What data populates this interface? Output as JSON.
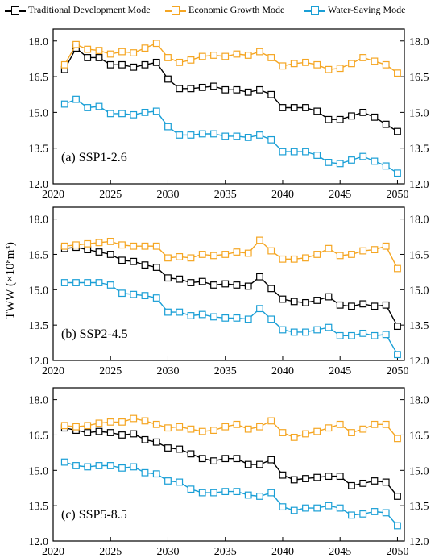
{
  "legend": {
    "items": [
      {
        "label": "Traditional Development Mode",
        "color": "#000000",
        "marker": "open-square"
      },
      {
        "label": "Economic Growth Mode",
        "color": "#f5a623",
        "marker": "open-square"
      },
      {
        "label": "Water-Saving Mode",
        "color": "#1a9fd6",
        "marker": "open-square"
      }
    ]
  },
  "shared_ylabel": "TWW (×10⁸m³)",
  "chart_data": [
    {
      "type": "line",
      "panel_label": "(a) SSP1-2.6",
      "x": [
        2021,
        2022,
        2023,
        2024,
        2025,
        2026,
        2027,
        2028,
        2029,
        2030,
        2031,
        2032,
        2033,
        2034,
        2035,
        2036,
        2037,
        2038,
        2039,
        2040,
        2041,
        2042,
        2043,
        2044,
        2045,
        2046,
        2047,
        2048,
        2049,
        2050
      ],
      "xticks": [
        2020,
        2025,
        2030,
        2035,
        2040,
        2045,
        2050
      ],
      "ylim": [
        12.0,
        18.5
      ],
      "yticks": [
        "12.0",
        "13.5",
        "15.0",
        "16.5",
        "18.0"
      ],
      "series": [
        {
          "name": "Traditional Development Mode",
          "color": "#000000",
          "values": [
            16.8,
            17.7,
            17.3,
            17.3,
            17.0,
            17.0,
            16.9,
            17.0,
            17.1,
            16.4,
            16.0,
            16.0,
            16.05,
            16.1,
            15.95,
            15.95,
            15.85,
            15.95,
            15.75,
            15.2,
            15.2,
            15.2,
            15.05,
            14.7,
            14.7,
            14.85,
            15.0,
            14.8,
            14.5,
            14.2
          ]
        },
        {
          "name": "Economic Growth Mode",
          "color": "#f5a623",
          "values": [
            17.0,
            17.85,
            17.65,
            17.6,
            17.45,
            17.55,
            17.5,
            17.7,
            17.9,
            17.3,
            17.1,
            17.2,
            17.35,
            17.4,
            17.35,
            17.45,
            17.4,
            17.55,
            17.3,
            16.95,
            17.05,
            17.1,
            17.0,
            16.8,
            16.85,
            17.05,
            17.3,
            17.15,
            17.0,
            16.65
          ]
        },
        {
          "name": "Water-Saving Mode",
          "color": "#1a9fd6",
          "values": [
            15.35,
            15.55,
            15.2,
            15.25,
            14.95,
            14.95,
            14.9,
            15.0,
            15.05,
            14.4,
            14.05,
            14.05,
            14.1,
            14.1,
            14.0,
            14.0,
            13.95,
            14.05,
            13.85,
            13.35,
            13.35,
            13.35,
            13.2,
            12.9,
            12.85,
            13.0,
            13.15,
            12.95,
            12.75,
            12.45
          ]
        }
      ]
    },
    {
      "type": "line",
      "panel_label": "(b) SSP2-4.5",
      "x": [
        2021,
        2022,
        2023,
        2024,
        2025,
        2026,
        2027,
        2028,
        2029,
        2030,
        2031,
        2032,
        2033,
        2034,
        2035,
        2036,
        2037,
        2038,
        2039,
        2040,
        2041,
        2042,
        2043,
        2044,
        2045,
        2046,
        2047,
        2048,
        2049,
        2050
      ],
      "xticks": [
        2020,
        2025,
        2030,
        2035,
        2040,
        2045,
        2050
      ],
      "ylim": [
        12.0,
        18.5
      ],
      "yticks": [
        "12.0",
        "13.5",
        "15.0",
        "16.5",
        "18.0"
      ],
      "series": [
        {
          "name": "Traditional Development Mode",
          "color": "#000000",
          "values": [
            16.75,
            16.8,
            16.7,
            16.6,
            16.5,
            16.25,
            16.2,
            16.05,
            15.95,
            15.5,
            15.45,
            15.3,
            15.35,
            15.2,
            15.25,
            15.2,
            15.15,
            15.55,
            15.05,
            14.6,
            14.5,
            14.45,
            14.55,
            14.7,
            14.35,
            14.3,
            14.4,
            14.3,
            14.35,
            13.45
          ]
        },
        {
          "name": "Economic Growth Mode",
          "color": "#f5a623",
          "values": [
            16.85,
            16.9,
            16.95,
            17.0,
            17.05,
            16.9,
            16.85,
            16.85,
            16.85,
            16.35,
            16.4,
            16.35,
            16.5,
            16.45,
            16.5,
            16.6,
            16.55,
            17.1,
            16.65,
            16.3,
            16.3,
            16.35,
            16.5,
            16.75,
            16.45,
            16.5,
            16.65,
            16.7,
            16.85,
            15.9
          ]
        },
        {
          "name": "Water-Saving Mode",
          "color": "#1a9fd6",
          "values": [
            15.3,
            15.3,
            15.3,
            15.3,
            15.2,
            14.85,
            14.8,
            14.75,
            14.65,
            14.05,
            14.05,
            13.9,
            13.95,
            13.85,
            13.8,
            13.8,
            13.75,
            14.2,
            13.75,
            13.3,
            13.2,
            13.2,
            13.3,
            13.4,
            13.05,
            13.05,
            13.15,
            13.05,
            13.1,
            12.25
          ]
        }
      ]
    },
    {
      "type": "line",
      "panel_label": "(c) SSP5-8.5",
      "x": [
        2021,
        2022,
        2023,
        2024,
        2025,
        2026,
        2027,
        2028,
        2029,
        2030,
        2031,
        2032,
        2033,
        2034,
        2035,
        2036,
        2037,
        2038,
        2039,
        2040,
        2041,
        2042,
        2043,
        2044,
        2045,
        2046,
        2047,
        2048,
        2049,
        2050
      ],
      "xticks": [
        2020,
        2025,
        2030,
        2035,
        2040,
        2045,
        2050
      ],
      "ylim": [
        12.0,
        18.5
      ],
      "yticks": [
        "12.0",
        "13.5",
        "15.0",
        "16.5",
        "18.0"
      ],
      "series": [
        {
          "name": "Traditional Development Mode",
          "color": "#000000",
          "values": [
            16.8,
            16.7,
            16.6,
            16.65,
            16.6,
            16.5,
            16.55,
            16.3,
            16.2,
            15.95,
            15.9,
            15.7,
            15.5,
            15.4,
            15.5,
            15.5,
            15.25,
            15.25,
            15.45,
            14.8,
            14.6,
            14.65,
            14.7,
            14.75,
            14.75,
            14.35,
            14.45,
            14.55,
            14.5,
            13.9
          ]
        },
        {
          "name": "Economic Growth Mode",
          "color": "#f5a623",
          "values": [
            16.9,
            16.85,
            16.9,
            17.0,
            17.05,
            17.05,
            17.2,
            17.1,
            16.95,
            16.8,
            16.85,
            16.75,
            16.65,
            16.7,
            16.85,
            16.95,
            16.75,
            16.85,
            17.1,
            16.6,
            16.4,
            16.55,
            16.65,
            16.8,
            16.95,
            16.6,
            16.75,
            16.95,
            16.95,
            16.35
          ]
        },
        {
          "name": "Water-Saving Mode",
          "color": "#1a9fd6",
          "values": [
            15.35,
            15.2,
            15.15,
            15.2,
            15.2,
            15.1,
            15.15,
            14.9,
            14.85,
            14.55,
            14.5,
            14.2,
            14.05,
            14.05,
            14.1,
            14.1,
            13.95,
            13.9,
            14.05,
            13.45,
            13.3,
            13.4,
            13.4,
            13.5,
            13.4,
            13.1,
            13.15,
            13.25,
            13.2,
            12.65
          ]
        }
      ]
    }
  ]
}
